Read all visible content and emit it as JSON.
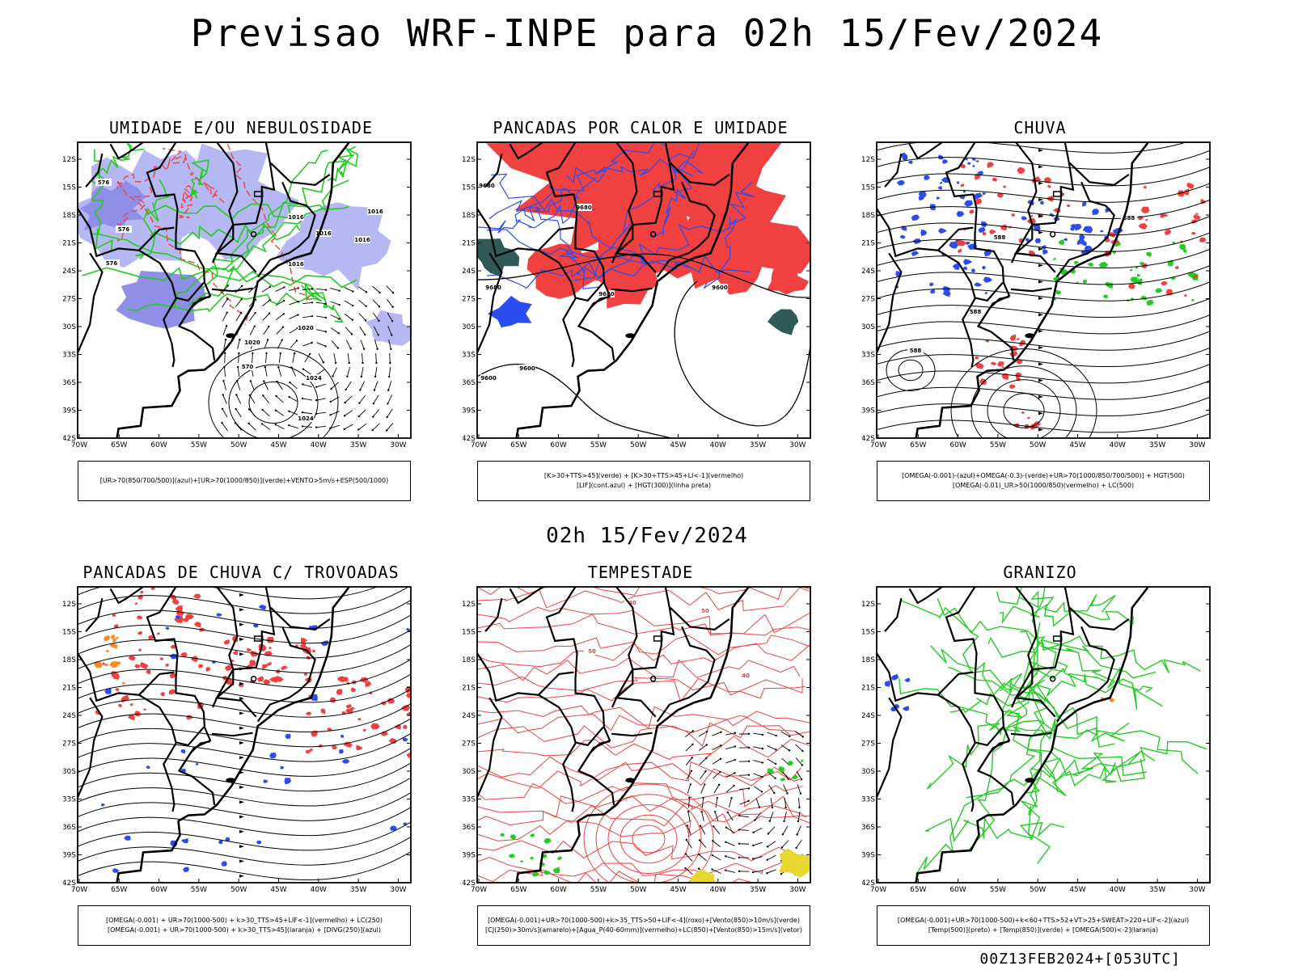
{
  "title": "Previsao WRF-INPE  para 02h 15/Fev/2024",
  "subtitle": "02h 15/Fev/2024",
  "footer": "00Z13FEB2024+[053UTC]",
  "axes": {
    "lat_labels": [
      "12S",
      "15S",
      "18S",
      "21S",
      "24S",
      "27S",
      "30S",
      "33S",
      "36S",
      "39S",
      "42S"
    ],
    "lon_labels": [
      "70W",
      "65W",
      "60W",
      "55W",
      "50W",
      "45W",
      "40W",
      "35W",
      "30W"
    ]
  },
  "colors": {
    "red": "#f04040",
    "blue": "#2a4cf0",
    "lightblue": "#b6b8f4",
    "lavender": "#8f8fe8",
    "green": "#22cc22",
    "darkteal": "#2f5a55",
    "orange": "#ff8a20",
    "yellow": "#e6d830",
    "black": "#000000"
  },
  "panels": [
    {
      "title": "UMIDADE E/OU NEBULOSIDADE",
      "legend": [
        "[UR>70(850/700/500)](azul)+[UR>70(1000/850)](verde)+VENTO>5m/s+ESP(500/1000)"
      ],
      "labels": [
        "1016",
        "1016",
        "1016",
        "1016",
        "1016",
        "1020",
        "1020",
        "1024",
        "1024",
        "576",
        "576",
        "576",
        "570"
      ]
    },
    {
      "title": "PANCADAS POR CALOR E UMIDADE",
      "legend": [
        "[K>30+TTS>45](verde) + [K>30+TTS>45+LI<-1](vermelho)",
        "[LIF](cont.azul) + [HGT(300)](linha preta)"
      ],
      "labels": [
        "9680",
        "9680",
        "9680",
        "9680",
        "9600",
        "9600",
        "9600"
      ]
    },
    {
      "title": "CHUVA",
      "legend": [
        "[OMEGA(-0.001)-(azul)+OMEGA(-0.3)-(verde)+UR>70(1000/850/700/500)] + HGT(500)",
        "[OMEGA(-0.01)_UR>50(1000/850)(vermelho) + LC(500)"
      ],
      "labels": [
        "588",
        "588",
        "588",
        "588"
      ]
    },
    {
      "title": "PANCADAS DE CHUVA C/ TROVOADAS",
      "legend": [
        "[OMEGA(-0.001) + UR>70(1000-500) + k>30_TTS>45+LIF<-1](vermelho) + LC(250)",
        "[OMEGA(-0.001) + UR>70(1000-500) + k>30_TTS>45](laranja) + [DIVG(250)](azul)"
      ],
      "labels": []
    },
    {
      "title": "TEMPESTADE",
      "legend": [
        "[OMEGA(-0.001)+UR>70(1000-500)+k>35_TTS>50+LIF<-4](roxo)+[Vento(850)>10m/s](verde)",
        "[CJ(250)>30m/s](amarelo)+[Agua_P(40-60mm)](vermelho)+LC(850)+[Vento(850)>15m/s](vetor)"
      ],
      "labels": [
        "40",
        "50",
        "50",
        "40"
      ]
    },
    {
      "title": "GRANIZO",
      "legend": [
        "[OMEGA(-0.001)+UR>70(1000-500)+k<60+TTS>52+VT>25+SWEAT>220+LIF<-2](azul)",
        "[Temp(500)](preto) + [Temp(850)](verde) + [OMEGA(500)<-2](laranja)"
      ],
      "labels": []
    }
  ]
}
